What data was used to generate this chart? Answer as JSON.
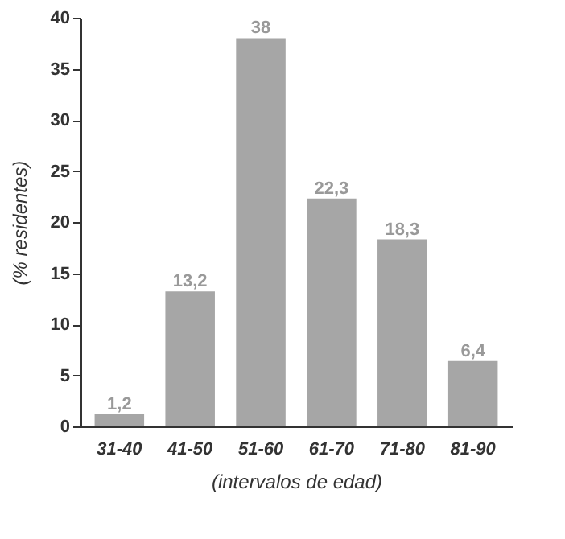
{
  "chart_data": {
    "type": "bar",
    "xlabel": "(intervalos de edad)",
    "ylabel": "(% residentes)",
    "categories": [
      "31-40",
      "41-50",
      "51-60",
      "61-70",
      "71-80",
      "81-90"
    ],
    "values": [
      1.2,
      13.2,
      38,
      22.3,
      18.3,
      6.4
    ],
    "value_labels": [
      "1,2",
      "13,2",
      "38",
      "22,3",
      "18,3",
      "6,4"
    ],
    "color": "#a6a6a6",
    "ylim": [
      0,
      40
    ],
    "yticks": [
      0,
      5,
      10,
      15,
      20,
      25,
      30,
      35,
      40
    ],
    "grid": false
  }
}
